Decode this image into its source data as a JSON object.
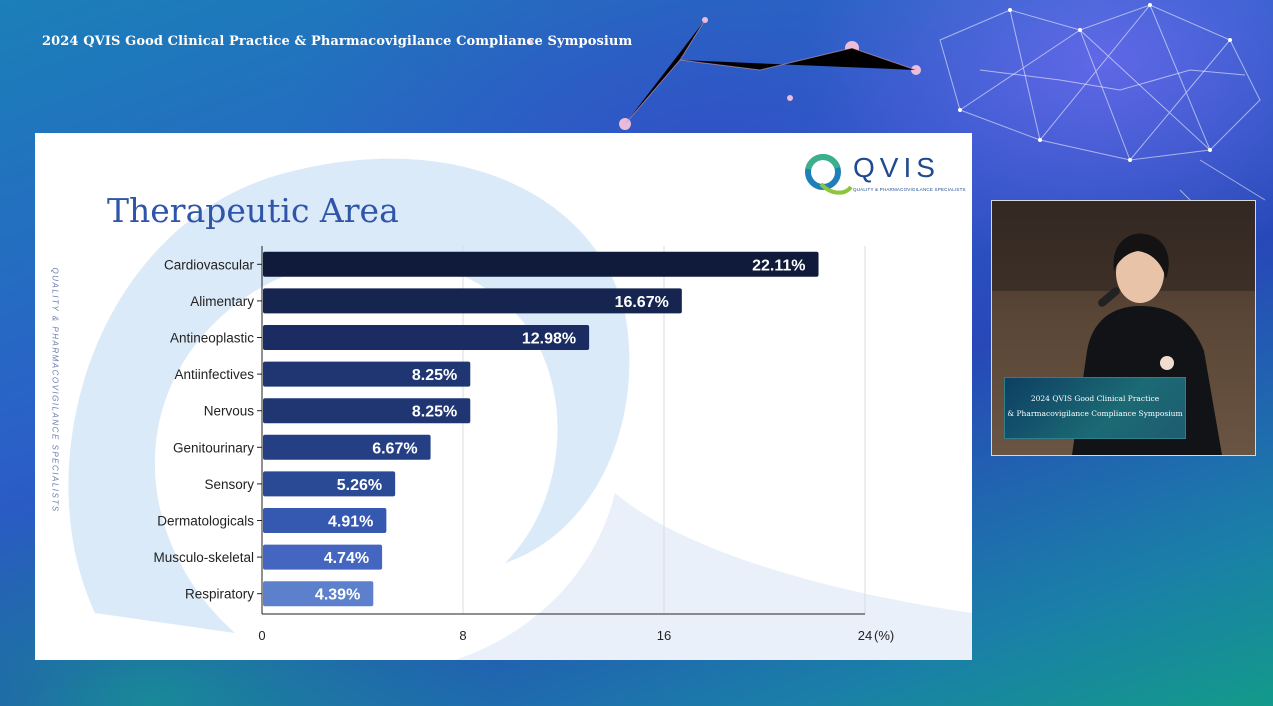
{
  "event": {
    "title": "2024  QVIS Good Clinical Practice  & Pharmacovigilance Compliance Symposium"
  },
  "slide": {
    "title": "Therapeutic Area",
    "logo_name": "QVIS",
    "logo_tagline": "QUALITY & PHARMACOVIGILANCE SPECIALISTS",
    "side_text": "QUALITY & PHARMACOVIGILANCE SPECIALISTS"
  },
  "chart_data": {
    "type": "bar",
    "orientation": "horizontal",
    "categories": [
      "Cardiovascular",
      "Alimentary",
      "Antineoplastic",
      "Antiinfectives",
      "Nervous",
      "Genitourinary",
      "Sensory",
      "Dermatologicals",
      "Musculo-skeletal",
      "Respiratory"
    ],
    "values": [
      22.11,
      16.67,
      12.98,
      8.25,
      8.25,
      6.67,
      5.26,
      4.91,
      4.74,
      4.39
    ],
    "value_labels": [
      "22.11%",
      "16.67%",
      "12.98%",
      "8.25%",
      "8.25%",
      "6.67%",
      "5.26%",
      "4.91%",
      "4.74%",
      "4.39%"
    ],
    "xlim": [
      0,
      24
    ],
    "xticks": [
      "0",
      "8",
      "16",
      "24"
    ],
    "xunit": "(%)",
    "grid": true,
    "bar_colors": [
      "#101a3a",
      "#162450",
      "#1b2c62",
      "#1f3672",
      "#1f3672",
      "#243f84",
      "#2a4a96",
      "#3558b0",
      "#4466c0",
      "#5d80cc"
    ]
  },
  "camera": {
    "podium_line1": "2024  QVIS Good Clinical Practice",
    "podium_line2": "& Pharmacovigilance Compliance Symposium"
  }
}
